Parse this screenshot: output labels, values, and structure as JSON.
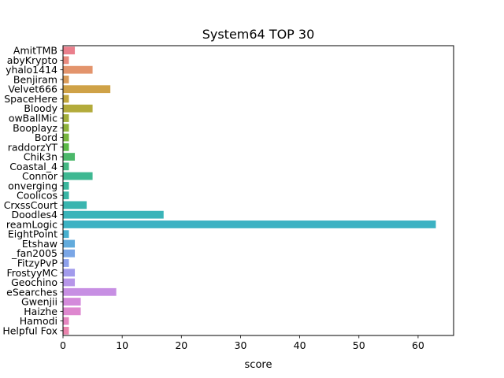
{
  "chart_data": {
    "type": "bar",
    "orientation": "horizontal",
    "title": "System64 TOP 30",
    "xlabel": "score",
    "ylabel": "",
    "xlim": [
      0,
      66
    ],
    "x_ticks": [
      0,
      10,
      20,
      30,
      40,
      50,
      60
    ],
    "grid": false,
    "categories": [
      "AmitTMB",
      "abyKrypto",
      "yhalo1414",
      "Benjiram",
      "Velvet666",
      "SpaceHere",
      "Bloody",
      "owBallMic",
      "Booplayz",
      "Bord",
      "raddorzYT",
      "Chik3n",
      "Coastal_4",
      "Connor",
      "onverging",
      "Coolicos",
      "CrxssCourt",
      "Doodles4",
      "reamLogic",
      "EightPoint",
      "Etshaw",
      "_fan2005",
      "FitzyPvP",
      "FrostyyMC",
      "Geochino",
      "eSearches",
      "Gwenjii",
      "Haizhe",
      "Hamodi",
      "Helpful Fox"
    ],
    "values": [
      2,
      1,
      5,
      1,
      8,
      1,
      5,
      1,
      1,
      1,
      1,
      2,
      1,
      5,
      1,
      1,
      4,
      17,
      63,
      1,
      2,
      2,
      1,
      2,
      2,
      9,
      3,
      3,
      1,
      1
    ],
    "colors": [
      "#ea7f8c",
      "#e98a7e",
      "#e3946c",
      "#da9c5a",
      "#cfa247",
      "#c2a73e",
      "#b3ab3b",
      "#a3af3b",
      "#8fb33b",
      "#77b63d",
      "#5bba47",
      "#4bb86a",
      "#44b883",
      "#3eb892",
      "#3bb79d",
      "#39b6a6",
      "#39b5af",
      "#3ab4b9",
      "#3cb2c3",
      "#48b0cf",
      "#62abdc",
      "#7aa6e6",
      "#8ea1ec",
      "#a29bec",
      "#b796e9",
      "#c78fe3",
      "#d48adb",
      "#de87cf",
      "#e585c0",
      "#ea83ad"
    ]
  }
}
